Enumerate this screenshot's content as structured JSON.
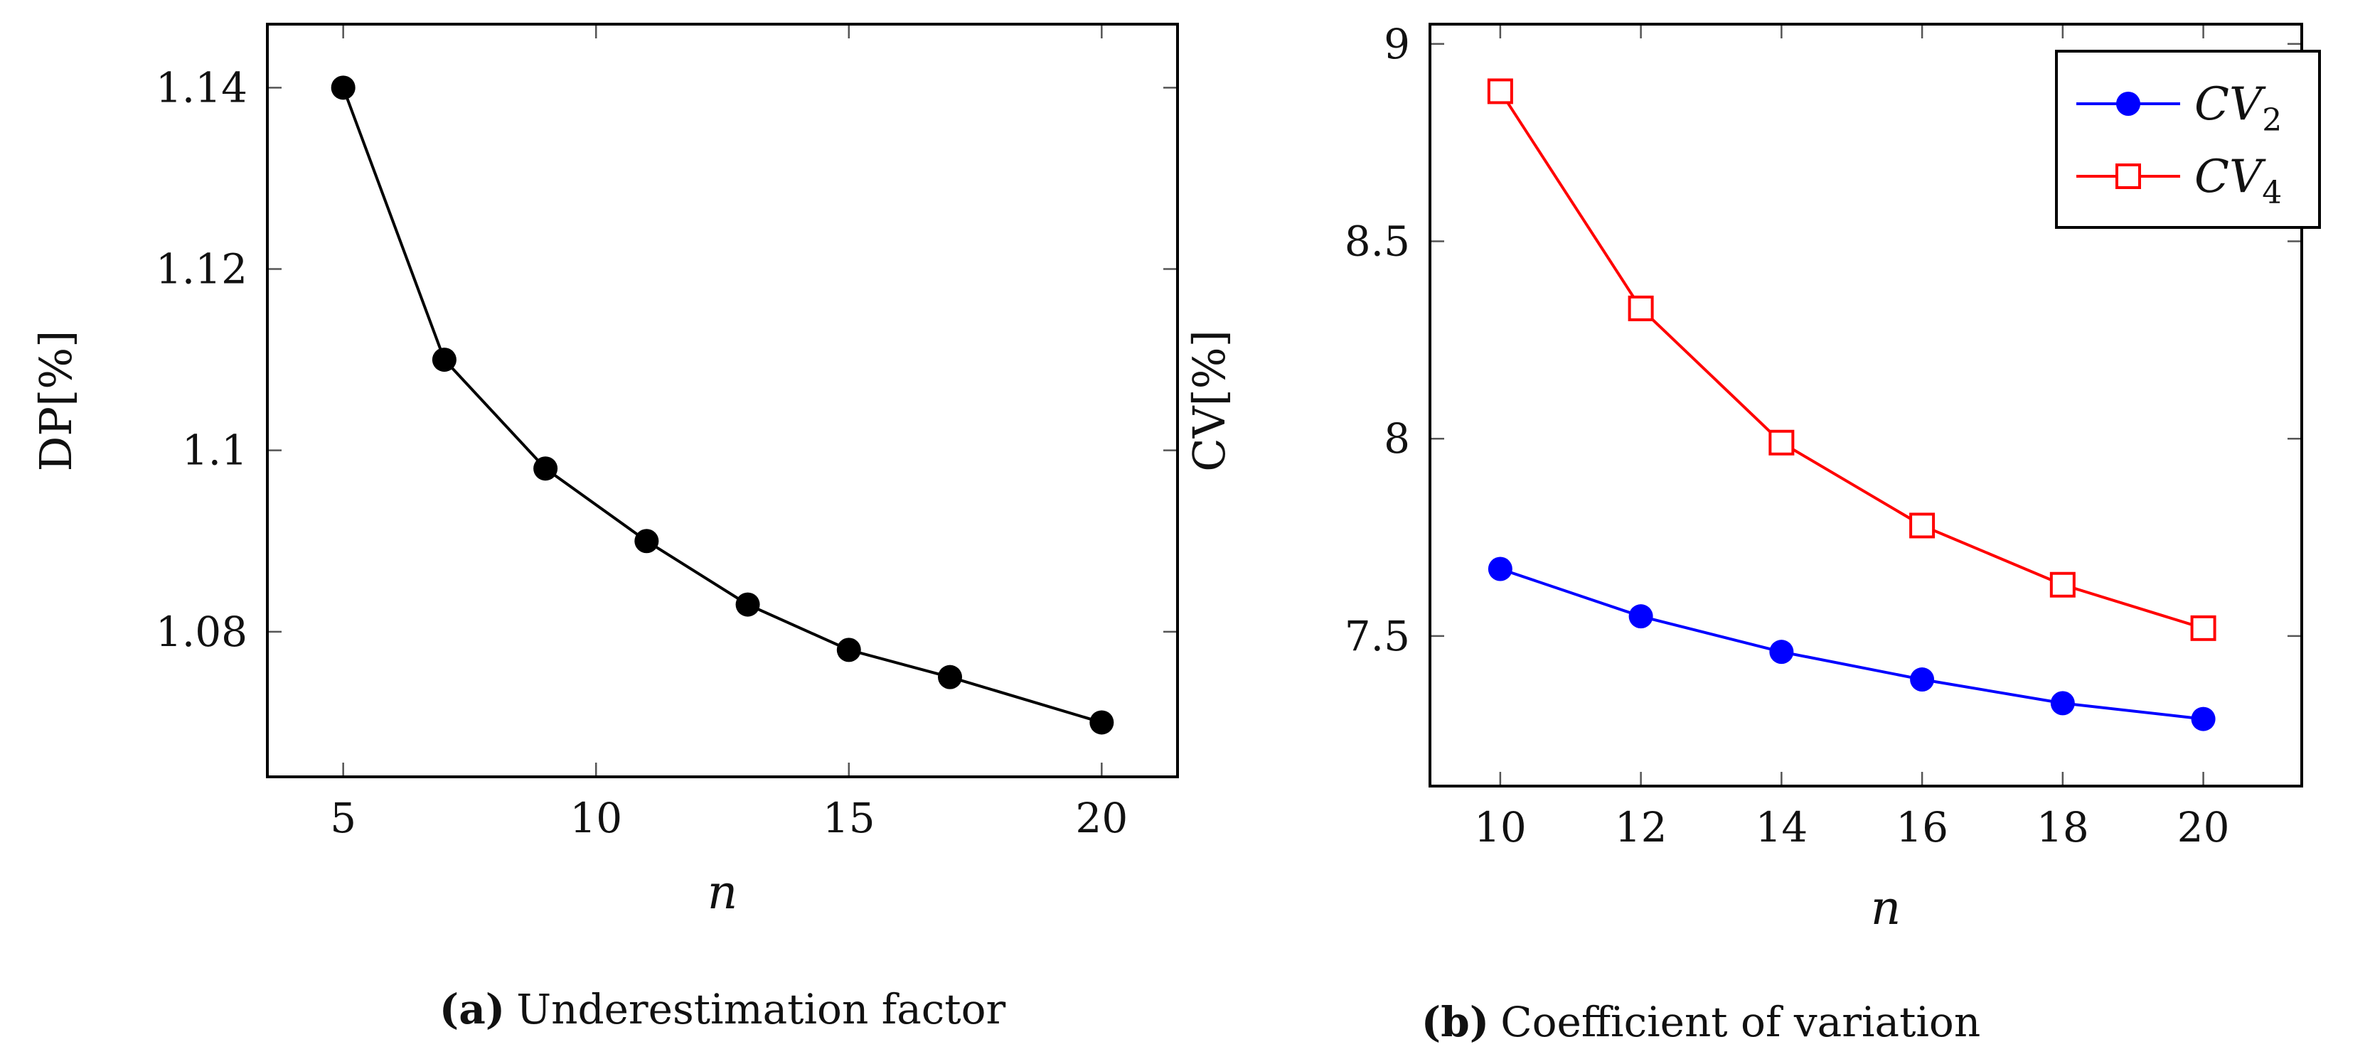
{
  "chart_data": [
    {
      "type": "line",
      "x": [
        5,
        7,
        9,
        11,
        13,
        15,
        17,
        20
      ],
      "series": [
        {
          "name": "DP",
          "values": [
            1.14,
            1.11,
            1.098,
            1.09,
            1.083,
            1.078,
            1.075,
            1.07
          ],
          "color": "#000000",
          "marker": "filled-circle"
        }
      ],
      "xlabel": "n",
      "ylabel": "DP[%]",
      "xlim": [
        3.5,
        21.5
      ],
      "ylim": [
        1.064,
        1.147
      ],
      "xticks": [
        5,
        10,
        15,
        20
      ],
      "yticks": [
        1.08,
        1.1,
        1.12,
        1.14
      ],
      "xtick_labels": [
        "5",
        "10",
        "15",
        "20"
      ],
      "ytick_labels": [
        "1.08",
        "1.1",
        "1.12",
        "1.14"
      ],
      "grid": false,
      "caption_label": "(a)",
      "caption_text": "Underestimation factor"
    },
    {
      "type": "line",
      "x": [
        10,
        12,
        14,
        16,
        18,
        20
      ],
      "series": [
        {
          "name": "CV2",
          "values": [
            7.67,
            7.55,
            7.46,
            7.39,
            7.33,
            7.29
          ],
          "color": "#0000ff",
          "marker": "filled-circle"
        },
        {
          "name": "CV4",
          "values": [
            8.88,
            8.33,
            7.99,
            7.78,
            7.63,
            7.52
          ],
          "color": "#ff0000",
          "marker": "open-square"
        }
      ],
      "legend": [
        {
          "base": "CV",
          "sub": "2"
        },
        {
          "base": "CV",
          "sub": "4"
        }
      ],
      "legend_position": "top-right",
      "xlabel": "n",
      "ylabel": "CV[%]",
      "xlim": [
        9.0,
        21.4
      ],
      "ylim": [
        7.12,
        9.05
      ],
      "xticks": [
        10,
        12,
        14,
        16,
        18,
        20
      ],
      "yticks": [
        7.5,
        8,
        8.5,
        9
      ],
      "xtick_labels": [
        "10",
        "12",
        "14",
        "16",
        "18",
        "20"
      ],
      "ytick_labels": [
        "7.5",
        "8",
        "8.5",
        "9"
      ],
      "grid": false,
      "caption_label": "(b)",
      "caption_text": "Coefficient of variation"
    }
  ]
}
